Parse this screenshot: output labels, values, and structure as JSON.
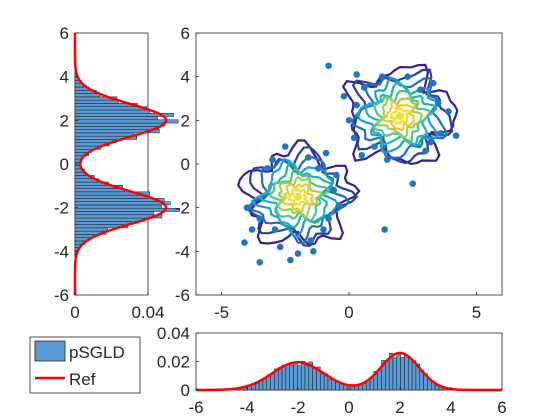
{
  "chart_data": [
    {
      "name": "left-marginal",
      "type": "bar",
      "orientation": "horizontal",
      "xlim": [
        0,
        0.04
      ],
      "ylim": [
        -6,
        6
      ],
      "xticks": [
        "0",
        "0.04"
      ],
      "yticks": [
        "-6",
        "-4",
        "-2",
        "0",
        "2",
        "4",
        "6"
      ],
      "series": [
        {
          "name": "pSGLD",
          "type": "histogram",
          "bin_width": 0.15,
          "bin_centers_from": -4.8,
          "bin_centers_to": 4.8
        },
        {
          "name": "Ref",
          "type": "line",
          "mixture": [
            {
              "weight": 0.5,
              "mean": -2,
              "sd": 0.75
            },
            {
              "weight": 0.5,
              "mean": 2,
              "sd": 0.75
            }
          ]
        }
      ],
      "colors": {
        "bars": "#5b9bd5",
        "ref": "#ff0000"
      }
    },
    {
      "name": "joint-scatter-contour",
      "type": "scatter",
      "xlim": [
        -6,
        6
      ],
      "ylim": [
        -6,
        6
      ],
      "xticks": [
        "-5",
        "0",
        "5"
      ],
      "yticks": [
        "-6",
        "-4",
        "-2",
        "0",
        "2",
        "4",
        "6"
      ],
      "modes": [
        {
          "x": -2,
          "y": -1.5
        },
        {
          "x": 2,
          "y": 2.2
        }
      ],
      "points": [
        {
          "x": -2.5,
          "y": 0.8
        },
        {
          "x": -3.2,
          "y": -0.2
        },
        {
          "x": -0.9,
          "y": 0.5
        },
        {
          "x": -0.6,
          "y": -1.2
        },
        {
          "x": -0.4,
          "y": -1.9
        },
        {
          "x": -3.5,
          "y": -2.5
        },
        {
          "x": -4.1,
          "y": -3.6
        },
        {
          "x": -3.5,
          "y": -4.5
        },
        {
          "x": -2.0,
          "y": -4.1
        },
        {
          "x": -2.3,
          "y": -4.4
        },
        {
          "x": -1.4,
          "y": -4.0
        },
        {
          "x": -4.0,
          "y": -2.0
        },
        {
          "x": -1.0,
          "y": -3.0
        },
        {
          "x": -0.8,
          "y": -2.5
        },
        {
          "x": -3.0,
          "y": 0.2
        },
        {
          "x": -1.6,
          "y": 0.3
        },
        {
          "x": -2.9,
          "y": -3.0
        },
        {
          "x": -1.5,
          "y": -3.5
        },
        {
          "x": -0.5,
          "y": -0.5
        },
        {
          "x": -3.8,
          "y": -3.0
        },
        {
          "x": -1.2,
          "y": -0.2
        },
        {
          "x": -2.7,
          "y": -3.8
        },
        {
          "x": -0.8,
          "y": 4.5
        },
        {
          "x": 0.3,
          "y": 4.1
        },
        {
          "x": 1.3,
          "y": 4.0
        },
        {
          "x": 2.3,
          "y": 4.0
        },
        {
          "x": 3.3,
          "y": 3.7
        },
        {
          "x": 3.9,
          "y": 2.4
        },
        {
          "x": 3.6,
          "y": 1.4
        },
        {
          "x": 4.2,
          "y": 1.3
        },
        {
          "x": 2.5,
          "y": -0.9
        },
        {
          "x": 1.4,
          "y": -3.0
        },
        {
          "x": 0.5,
          "y": 0.4
        },
        {
          "x": 0.2,
          "y": 1.2
        },
        {
          "x": 0.0,
          "y": 2.0
        },
        {
          "x": -0.2,
          "y": 3.1
        },
        {
          "x": 1.0,
          "y": 0.8
        },
        {
          "x": 3.0,
          "y": 0.6
        },
        {
          "x": 3.5,
          "y": 2.8
        },
        {
          "x": 0.6,
          "y": 3.5
        },
        {
          "x": 1.5,
          "y": 0.2
        },
        {
          "x": 2.8,
          "y": 3.4
        },
        {
          "x": 0.3,
          "y": 2.7
        },
        {
          "x": 3.2,
          "y": 1.0
        }
      ],
      "colors": {
        "points": "#1f77c4",
        "contours": [
          "#3b1f8c",
          "#2b3f9a",
          "#1f6fc0",
          "#1c9cd0",
          "#20b5b0",
          "#4cc48a",
          "#9ccf4c",
          "#e8c83a",
          "#f5e020"
        ]
      }
    },
    {
      "name": "bottom-marginal",
      "type": "bar",
      "xlim": [
        -6,
        6
      ],
      "ylim": [
        0,
        0.04
      ],
      "xticks": [
        "-6",
        "-4",
        "-2",
        "0",
        "2",
        "4",
        "6"
      ],
      "yticks": [
        "0",
        "0.02",
        "0.04"
      ],
      "series": [
        {
          "name": "pSGLD",
          "type": "histogram",
          "bin_width": 0.15,
          "bin_centers_from": -4.8,
          "bin_centers_to": 4.8
        },
        {
          "name": "Ref",
          "type": "line",
          "mixture": [
            {
              "weight": 0.5,
              "mean": -2,
              "sd": 1.0
            },
            {
              "weight": 0.5,
              "mean": 2,
              "sd": 0.75
            }
          ]
        }
      ],
      "colors": {
        "bars": "#5b9bd5",
        "ref": "#ff0000"
      }
    }
  ],
  "legend": {
    "items": [
      {
        "label": "pSGLD",
        "swatch": "#5b9bd5"
      },
      {
        "label": "Ref",
        "swatch": "#ff0000"
      }
    ]
  }
}
